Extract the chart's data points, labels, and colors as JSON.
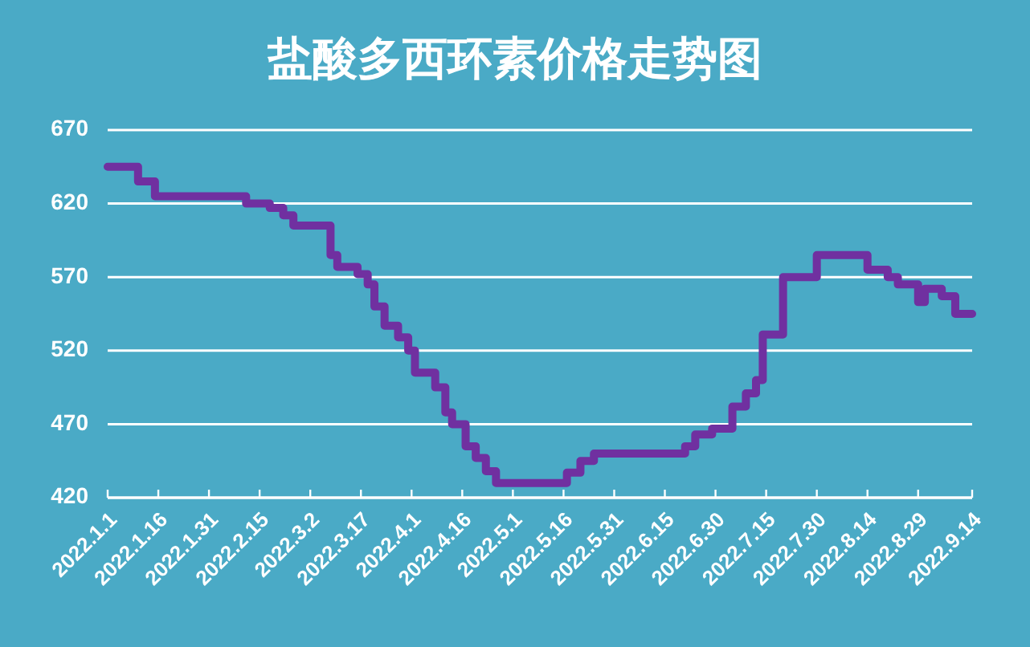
{
  "chart_data": {
    "type": "step",
    "title": "盐酸多西环素价格走势图",
    "x": [
      "2022-01-01",
      "2022-01-10",
      "2022-01-15",
      "2022-02-11",
      "2022-02-18",
      "2022-02-22",
      "2022-02-25",
      "2022-03-08",
      "2022-03-10",
      "2022-03-16",
      "2022-03-19",
      "2022-03-21",
      "2022-03-24",
      "2022-03-28",
      "2022-03-31",
      "2022-04-02",
      "2022-04-08",
      "2022-04-11",
      "2022-04-13",
      "2022-04-17",
      "2022-04-20",
      "2022-04-23",
      "2022-04-26",
      "2022-05-17",
      "2022-05-21",
      "2022-05-25",
      "2022-06-21",
      "2022-06-24",
      "2022-06-29",
      "2022-07-05",
      "2022-07-09",
      "2022-07-12",
      "2022-07-14",
      "2022-07-20",
      "2022-07-30",
      "2022-08-14",
      "2022-08-20",
      "2022-08-23",
      "2022-08-29",
      "2022-08-31",
      "2022-09-05",
      "2022-09-09",
      "2022-09-14"
    ],
    "series": [
      {
        "color": "#7030a0",
        "values": [
          645,
          635,
          625,
          620,
          617,
          612,
          605,
          585,
          577,
          572,
          565,
          550,
          537,
          529,
          520,
          505,
          495,
          478,
          470,
          455,
          447,
          438,
          430,
          437,
          445,
          450,
          455,
          463,
          467,
          482,
          491,
          500,
          531,
          570,
          585,
          575,
          570,
          565,
          553,
          562,
          557,
          545,
          545
        ]
      }
    ],
    "xlim": [
      "2022-01-01",
      "2022-09-14"
    ],
    "xticks": [
      {
        "value": "2022-01-01",
        "label": "2022.1.1"
      },
      {
        "value": "2022-01-16",
        "label": "2022.1.16"
      },
      {
        "value": "2022-01-31",
        "label": "2022.1.31"
      },
      {
        "value": "2022-02-15",
        "label": "2022.2.15"
      },
      {
        "value": "2022-03-02",
        "label": "2022.3.2"
      },
      {
        "value": "2022-03-17",
        "label": "2022.3.17"
      },
      {
        "value": "2022-04-01",
        "label": "2022.4.1"
      },
      {
        "value": "2022-04-16",
        "label": "2022.4.16"
      },
      {
        "value": "2022-05-01",
        "label": "2022.5.1"
      },
      {
        "value": "2022-05-16",
        "label": "2022.5.16"
      },
      {
        "value": "2022-05-31",
        "label": "2022.5.31"
      },
      {
        "value": "2022-06-15",
        "label": "2022.6.15"
      },
      {
        "value": "2022-06-30",
        "label": "2022.6.30"
      },
      {
        "value": "2022-07-15",
        "label": "2022.7.15"
      },
      {
        "value": "2022-07-30",
        "label": "2022.7.30"
      },
      {
        "value": "2022-08-14",
        "label": "2022.8.14"
      },
      {
        "value": "2022-08-29",
        "label": "2022.8.29"
      },
      {
        "value": "2022-09-14",
        "label": "2022.9.14"
      }
    ],
    "ylim": [
      420,
      670
    ],
    "yticks": [
      420,
      470,
      520,
      570,
      620,
      670
    ],
    "grid": "y",
    "marker": "none",
    "line_style": "solid"
  }
}
